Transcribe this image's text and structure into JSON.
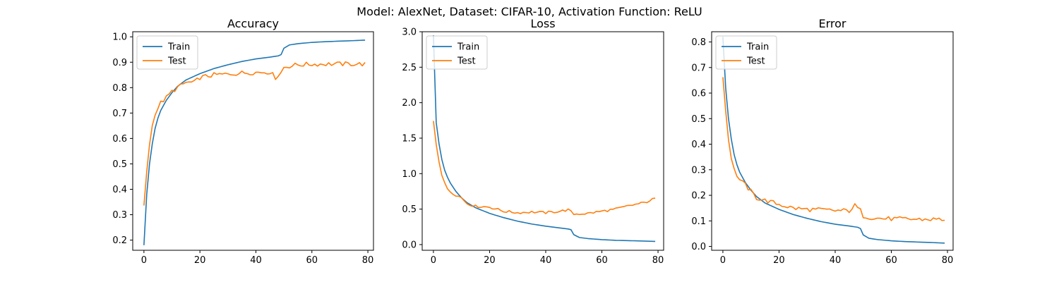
{
  "suptitle": "Model: AlexNet, Dataset: CIFAR-10, Activation Function: ReLU",
  "colors": {
    "train": "#1f77b4",
    "test": "#ff7f0e",
    "legend_border": "#cccccc"
  },
  "chart_data": [
    {
      "type": "line",
      "title": "Accuracy",
      "xlabel": "",
      "ylabel": "",
      "xlim": [
        -4,
        82
      ],
      "ylim": [
        0.16,
        1.02
      ],
      "xticks": [
        0,
        20,
        40,
        60,
        80
      ],
      "yticks": [
        0.2,
        0.3,
        0.4,
        0.5,
        0.6,
        0.7,
        0.8,
        0.9,
        1.0
      ],
      "ytick_labels": [
        "0.2",
        "0.3",
        "0.4",
        "0.5",
        "0.6",
        "0.7",
        "0.8",
        "0.9",
        "1.0"
      ],
      "legend_position": "upper-left",
      "series": [
        {
          "name": "Train",
          "color": "#1f77b4",
          "anchors": [
            [
              0,
              0.18
            ],
            [
              1,
              0.38
            ],
            [
              2,
              0.5
            ],
            [
              3,
              0.58
            ],
            [
              4,
              0.64
            ],
            [
              5,
              0.68
            ],
            [
              6,
              0.71
            ],
            [
              8,
              0.75
            ],
            [
              10,
              0.78
            ],
            [
              12,
              0.805
            ],
            [
              15,
              0.83
            ],
            [
              20,
              0.855
            ],
            [
              25,
              0.875
            ],
            [
              30,
              0.89
            ],
            [
              35,
              0.903
            ],
            [
              40,
              0.913
            ],
            [
              45,
              0.92
            ],
            [
              48,
              0.925
            ],
            [
              49,
              0.93
            ],
            [
              50,
              0.955
            ],
            [
              52,
              0.968
            ],
            [
              55,
              0.973
            ],
            [
              60,
              0.978
            ],
            [
              65,
              0.981
            ],
            [
              70,
              0.983
            ],
            [
              75,
              0.985
            ],
            [
              79,
              0.987
            ]
          ],
          "noise": 0
        },
        {
          "name": "Test",
          "color": "#ff7f0e",
          "anchors": [
            [
              0,
              0.33
            ],
            [
              1,
              0.47
            ],
            [
              2,
              0.58
            ],
            [
              3,
              0.65
            ],
            [
              4,
              0.7
            ],
            [
              5,
              0.72
            ],
            [
              6,
              0.74
            ],
            [
              8,
              0.76
            ],
            [
              10,
              0.785
            ],
            [
              12,
              0.8
            ],
            [
              15,
              0.82
            ],
            [
              18,
              0.82
            ],
            [
              20,
              0.84
            ],
            [
              25,
              0.85
            ],
            [
              30,
              0.853
            ],
            [
              35,
              0.858
            ],
            [
              40,
              0.86
            ],
            [
              45,
              0.862
            ],
            [
              47,
              0.84
            ],
            [
              49,
              0.86
            ],
            [
              50,
              0.88
            ],
            [
              52,
              0.885
            ],
            [
              55,
              0.89
            ],
            [
              60,
              0.892
            ],
            [
              65,
              0.893
            ],
            [
              70,
              0.893
            ],
            [
              75,
              0.893
            ],
            [
              79,
              0.893
            ]
          ],
          "noise": 0.009
        }
      ]
    },
    {
      "type": "line",
      "title": "Loss",
      "xlabel": "",
      "ylabel": "",
      "xlim": [
        -4,
        82
      ],
      "ylim": [
        -0.08,
        3.0
      ],
      "xticks": [
        0,
        20,
        40,
        60,
        80
      ],
      "yticks": [
        0.0,
        0.5,
        1.0,
        1.5,
        2.0,
        2.5,
        3.0
      ],
      "ytick_labels": [
        "0.0",
        "0.5",
        "1.0",
        "1.5",
        "2.0",
        "2.5",
        "3.0"
      ],
      "legend_position": "upper-left",
      "series": [
        {
          "name": "Train",
          "color": "#1f77b4",
          "anchors": [
            [
              0,
              2.95
            ],
            [
              1,
              1.72
            ],
            [
              2,
              1.42
            ],
            [
              3,
              1.2
            ],
            [
              4,
              1.05
            ],
            [
              5,
              0.95
            ],
            [
              6,
              0.87
            ],
            [
              8,
              0.75
            ],
            [
              10,
              0.66
            ],
            [
              12,
              0.59
            ],
            [
              15,
              0.52
            ],
            [
              20,
              0.44
            ],
            [
              25,
              0.38
            ],
            [
              30,
              0.33
            ],
            [
              35,
              0.29
            ],
            [
              40,
              0.26
            ],
            [
              45,
              0.235
            ],
            [
              48,
              0.22
            ],
            [
              49,
              0.21
            ],
            [
              50,
              0.14
            ],
            [
              52,
              0.1
            ],
            [
              55,
              0.085
            ],
            [
              60,
              0.07
            ],
            [
              65,
              0.06
            ],
            [
              70,
              0.055
            ],
            [
              75,
              0.05
            ],
            [
              79,
              0.045
            ]
          ],
          "noise": 0
        },
        {
          "name": "Test",
          "color": "#ff7f0e",
          "anchors": [
            [
              0,
              1.75
            ],
            [
              1,
              1.42
            ],
            [
              2,
              1.18
            ],
            [
              3,
              0.98
            ],
            [
              4,
              0.86
            ],
            [
              5,
              0.79
            ],
            [
              6,
              0.75
            ],
            [
              8,
              0.7
            ],
            [
              10,
              0.66
            ],
            [
              12,
              0.58
            ],
            [
              15,
              0.54
            ],
            [
              20,
              0.53
            ],
            [
              25,
              0.47
            ],
            [
              30,
              0.45
            ],
            [
              35,
              0.46
            ],
            [
              40,
              0.45
            ],
            [
              45,
              0.47
            ],
            [
              48,
              0.49
            ],
            [
              50,
              0.43
            ],
            [
              55,
              0.44
            ],
            [
              60,
              0.47
            ],
            [
              65,
              0.5
            ],
            [
              70,
              0.55
            ],
            [
              75,
              0.59
            ],
            [
              79,
              0.65
            ]
          ],
          "noise": 0.018
        }
      ]
    },
    {
      "type": "line",
      "title": "Error",
      "xlabel": "",
      "ylabel": "",
      "xlim": [
        -4,
        82
      ],
      "ylim": [
        -0.015,
        0.84
      ],
      "xticks": [
        0,
        20,
        40,
        60,
        80
      ],
      "yticks": [
        0.0,
        0.1,
        0.2,
        0.3,
        0.4,
        0.5,
        0.6,
        0.7,
        0.8
      ],
      "ytick_labels": [
        "0.0",
        "0.1",
        "0.2",
        "0.3",
        "0.4",
        "0.5",
        "0.6",
        "0.7",
        "0.8"
      ],
      "legend_position": "upper-left",
      "series": [
        {
          "name": "Train",
          "color": "#1f77b4",
          "anchors": [
            [
              0,
              0.82
            ],
            [
              1,
              0.62
            ],
            [
              2,
              0.5
            ],
            [
              3,
              0.42
            ],
            [
              4,
              0.36
            ],
            [
              5,
              0.32
            ],
            [
              6,
              0.29
            ],
            [
              8,
              0.25
            ],
            [
              10,
              0.22
            ],
            [
              12,
              0.195
            ],
            [
              15,
              0.17
            ],
            [
              20,
              0.145
            ],
            [
              25,
              0.125
            ],
            [
              30,
              0.11
            ],
            [
              35,
              0.097
            ],
            [
              40,
              0.087
            ],
            [
              45,
              0.08
            ],
            [
              48,
              0.075
            ],
            [
              49,
              0.07
            ],
            [
              50,
              0.045
            ],
            [
              52,
              0.032
            ],
            [
              55,
              0.027
            ],
            [
              60,
              0.022
            ],
            [
              65,
              0.019
            ],
            [
              70,
              0.017
            ],
            [
              75,
              0.015
            ],
            [
              79,
              0.013
            ]
          ],
          "noise": 0
        },
        {
          "name": "Test",
          "color": "#ff7f0e",
          "anchors": [
            [
              0,
              0.67
            ],
            [
              1,
              0.53
            ],
            [
              2,
              0.42
            ],
            [
              3,
              0.35
            ],
            [
              4,
              0.3
            ],
            [
              5,
              0.28
            ],
            [
              6,
              0.26
            ],
            [
              8,
              0.24
            ],
            [
              10,
              0.215
            ],
            [
              12,
              0.19
            ],
            [
              15,
              0.18
            ],
            [
              20,
              0.165
            ],
            [
              25,
              0.15
            ],
            [
              30,
              0.145
            ],
            [
              35,
              0.143
            ],
            [
              40,
              0.14
            ],
            [
              45,
              0.14
            ],
            [
              47,
              0.16
            ],
            [
              49,
              0.14
            ],
            [
              50,
              0.12
            ],
            [
              52,
              0.115
            ],
            [
              55,
              0.11
            ],
            [
              60,
              0.108
            ],
            [
              65,
              0.107
            ],
            [
              70,
              0.106
            ],
            [
              75,
              0.106
            ],
            [
              79,
              0.106
            ]
          ],
          "noise": 0.009
        }
      ]
    }
  ]
}
